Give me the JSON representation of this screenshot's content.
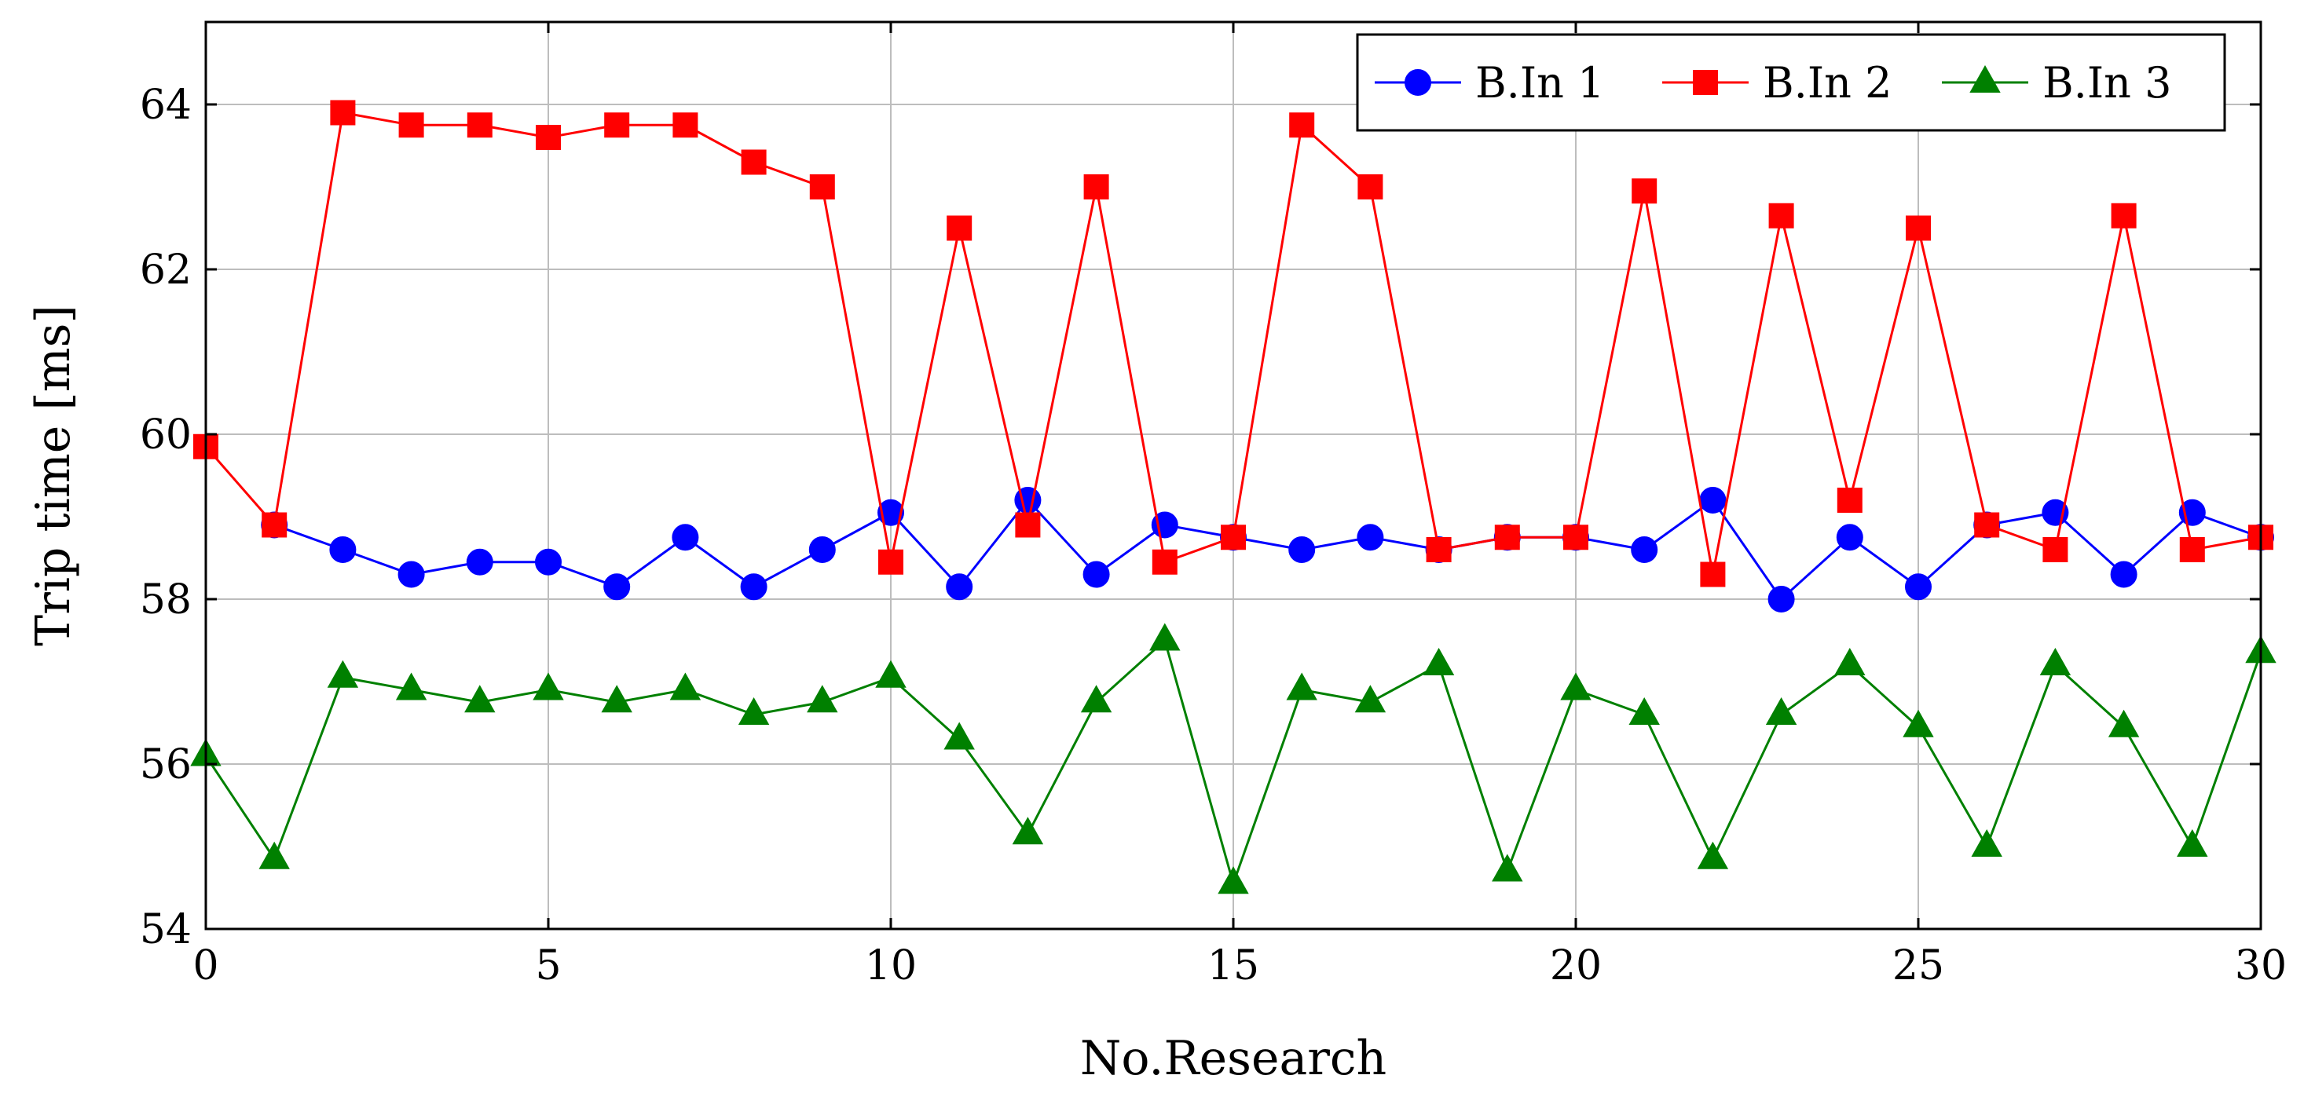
{
  "chart_data": {
    "type": "line",
    "title": "",
    "xlabel": "No.Research",
    "ylabel": "Trip time [ms]",
    "xlim": [
      0,
      30
    ],
    "ylim": [
      54,
      65
    ],
    "xticks": [
      0,
      5,
      10,
      15,
      20,
      25,
      30
    ],
    "yticks": [
      54,
      56,
      58,
      60,
      62,
      64
    ],
    "grid": true,
    "legend_position": "top-right",
    "x": [
      0,
      1,
      2,
      3,
      4,
      5,
      6,
      7,
      8,
      9,
      10,
      11,
      12,
      13,
      14,
      15,
      16,
      17,
      18,
      19,
      20,
      21,
      22,
      23,
      24,
      25,
      26,
      27,
      28,
      29,
      30
    ],
    "series": [
      {
        "name": "B.In 1",
        "color": "#0000ff",
        "marker": "circle",
        "x": [
          1,
          2,
          3,
          4,
          5,
          6,
          7,
          8,
          9,
          10,
          11,
          12,
          13,
          14,
          15,
          16,
          17,
          18,
          19,
          20,
          21,
          22,
          23,
          24,
          25,
          26,
          27,
          28,
          29,
          30
        ],
        "values": [
          58.9,
          58.6,
          58.3,
          58.45,
          58.45,
          58.15,
          58.75,
          58.15,
          58.6,
          59.05,
          58.15,
          59.2,
          58.3,
          58.9,
          58.75,
          58.6,
          58.75,
          58.6,
          58.75,
          58.75,
          58.6,
          59.2,
          58.0,
          58.75,
          58.15,
          58.9,
          59.05,
          58.3,
          59.05,
          58.75
        ]
      },
      {
        "name": "B.In 2",
        "color": "#ff0000",
        "marker": "square",
        "x": [
          0,
          1,
          2,
          3,
          4,
          5,
          6,
          7,
          8,
          9,
          10,
          11,
          12,
          13,
          14,
          15,
          16,
          17,
          18,
          19,
          20,
          21,
          22,
          23,
          24,
          25,
          26,
          27,
          28,
          29,
          30
        ],
        "values": [
          59.85,
          58.9,
          63.9,
          63.75,
          63.75,
          63.6,
          63.75,
          63.75,
          63.3,
          63.0,
          58.45,
          62.5,
          58.9,
          63.0,
          58.45,
          58.75,
          63.75,
          63.0,
          58.6,
          58.75,
          58.75,
          62.95,
          58.3,
          62.65,
          59.2,
          62.5,
          58.9,
          58.6,
          62.65,
          58.6,
          58.75
        ]
      },
      {
        "name": "B.In 3",
        "color": "#008000",
        "marker": "triangle",
        "x": [
          0,
          1,
          2,
          3,
          4,
          5,
          6,
          7,
          8,
          9,
          10,
          11,
          12,
          13,
          14,
          15,
          16,
          17,
          18,
          19,
          20,
          21,
          22,
          23,
          24,
          25,
          26,
          27,
          28,
          29,
          30
        ],
        "values": [
          56.1,
          54.85,
          57.05,
          56.9,
          56.75,
          56.9,
          56.75,
          56.9,
          56.6,
          56.75,
          57.05,
          56.3,
          55.15,
          56.75,
          57.5,
          54.55,
          56.9,
          56.75,
          57.2,
          54.7,
          56.9,
          56.6,
          54.85,
          56.6,
          57.2,
          56.45,
          55.0,
          57.2,
          56.45,
          55.0,
          57.35
        ]
      }
    ]
  }
}
